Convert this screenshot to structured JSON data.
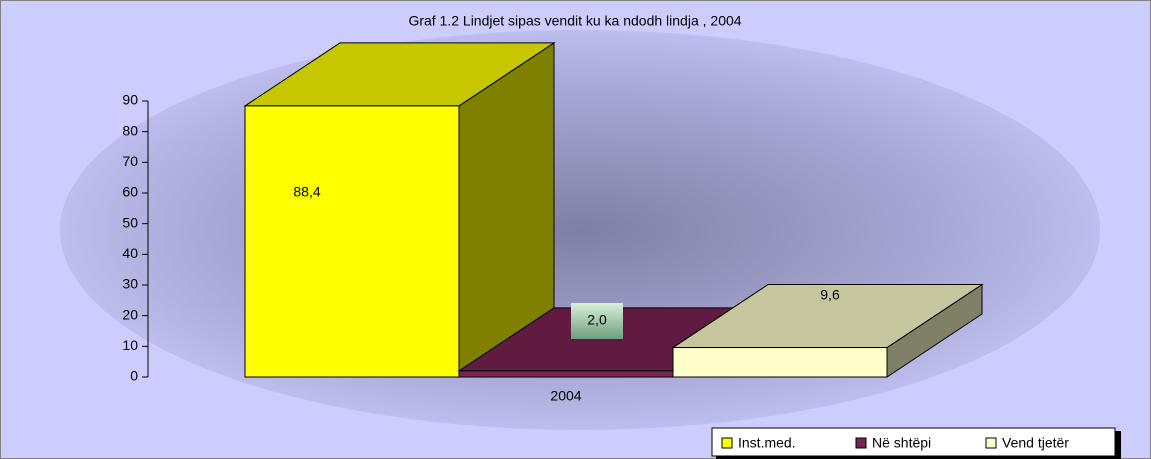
{
  "chart_data": {
    "type": "bar3d",
    "title": "Graf 1.2  Lindjet sipas vendit ku ka ndodh lindja , 2004",
    "categories": [
      "2004"
    ],
    "series": [
      {
        "name": "Inst.med.",
        "color": "#ffff00",
        "values": [
          88.4
        ],
        "value_labels": [
          "88,4"
        ]
      },
      {
        "name": "Në shtëpi",
        "color": "#7b2452",
        "values": [
          2.0
        ],
        "value_labels": [
          "2,0"
        ]
      },
      {
        "name": "Vend tjetër",
        "color": "#ffffcc",
        "values": [
          9.6
        ],
        "value_labels": [
          "9,6"
        ]
      }
    ],
    "ylim": [
      0,
      90
    ],
    "yticks": [
      0,
      10,
      20,
      30,
      40,
      50,
      60,
      70,
      80,
      90
    ],
    "legend": "bottom-right"
  }
}
